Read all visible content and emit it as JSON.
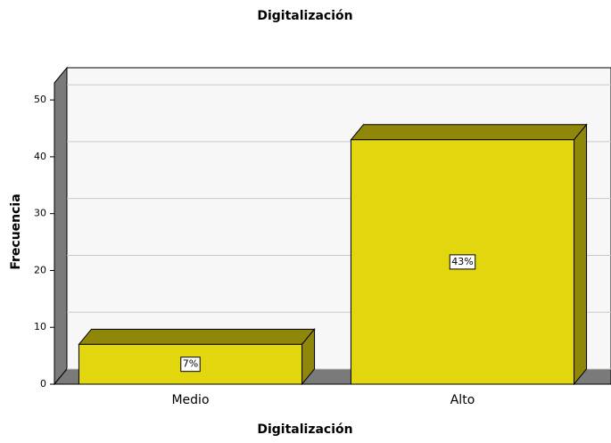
{
  "chart_data": {
    "type": "bar",
    "title": "Digitalización",
    "x_label": "Digitalización",
    "y_label": "Frecuencia",
    "categories": [
      "Medio",
      "Alto"
    ],
    "values": [
      7,
      43
    ],
    "value_labels": [
      "7%",
      "43%"
    ],
    "color": "#e2d60f",
    "ylim": [
      0,
      53
    ],
    "yticks": [
      0,
      10,
      20,
      30,
      40,
      50
    ],
    "grid": true
  }
}
